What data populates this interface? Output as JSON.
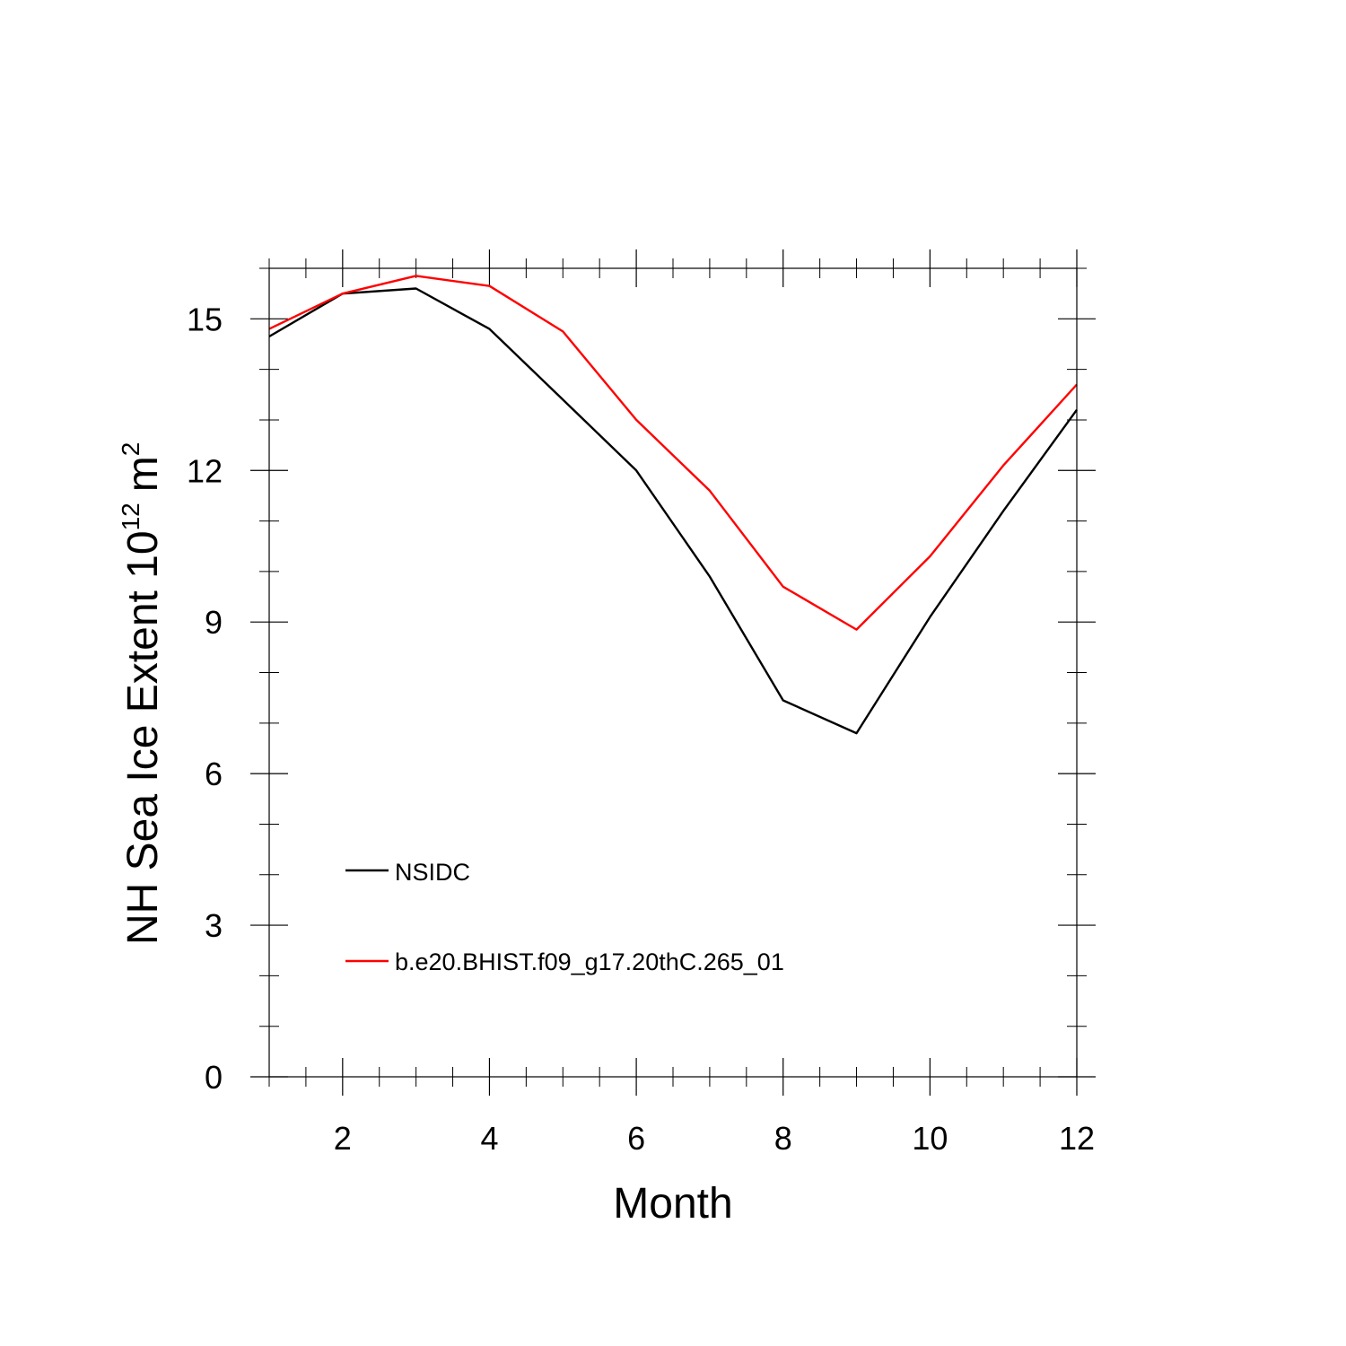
{
  "chart_data": {
    "type": "line",
    "title": "",
    "xlabel": "Month",
    "ylabel": "NH Sea Ice Extent 10",
    "ylabel_superscript_1": "12",
    "ylabel_unit": "m",
    "ylabel_superscript_2": "2",
    "x": [
      1,
      2,
      3,
      4,
      5,
      6,
      7,
      8,
      9,
      10,
      11,
      12
    ],
    "xlim": [
      1,
      12
    ],
    "ylim": [
      0,
      16
    ],
    "x_ticks": [
      2,
      4,
      6,
      8,
      10,
      12
    ],
    "x_tick_labels": [
      "2",
      "4",
      "6",
      "8",
      "10",
      "12"
    ],
    "y_ticks": [
      0,
      3,
      6,
      9,
      12,
      15
    ],
    "y_tick_labels": [
      "0",
      "3",
      "6",
      "9",
      "12",
      "15"
    ],
    "grid": false,
    "legend_position": "lower-left",
    "series": [
      {
        "name": "NSIDC",
        "color": "#000000",
        "values": [
          14.65,
          15.5,
          15.6,
          14.8,
          13.4,
          12.0,
          9.9,
          7.45,
          6.8,
          9.1,
          11.2,
          13.2
        ]
      },
      {
        "name": "b.e20.BHIST.f09_g17.20thC.265_01",
        "color": "#ff0000",
        "values": [
          14.8,
          15.5,
          15.85,
          15.65,
          14.75,
          13.0,
          11.6,
          9.7,
          8.85,
          10.3,
          12.1,
          13.7
        ]
      }
    ]
  }
}
